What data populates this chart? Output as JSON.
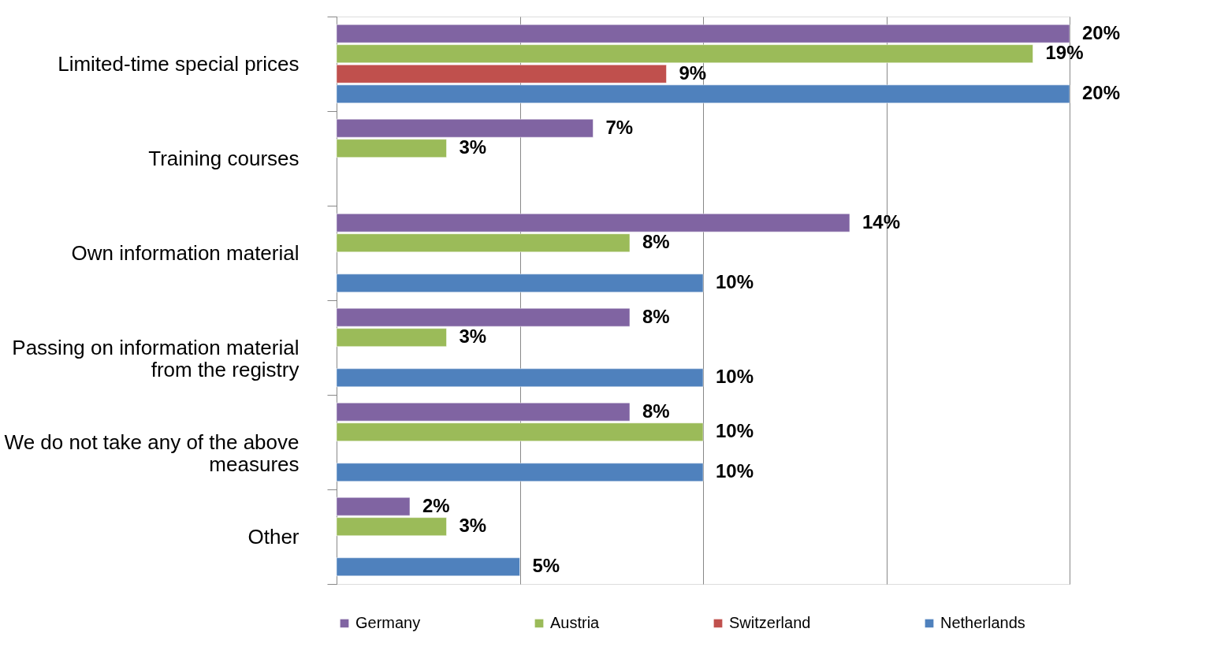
{
  "chart_data": {
    "type": "bar",
    "orientation": "horizontal",
    "categories": [
      "Limited-time special prices",
      "Training courses",
      "Own information material",
      "Passing on information material from the registry",
      "We do not take any of the above measures",
      "Other"
    ],
    "series": [
      {
        "name": "Germany",
        "color": "#8064a2",
        "values": [
          20,
          7,
          14,
          8,
          8,
          2
        ],
        "value_labels": [
          "20%",
          "7%",
          "14%",
          "8%",
          "8%",
          "2%"
        ]
      },
      {
        "name": "Austria",
        "color": "#9bbb59",
        "values": [
          19,
          3,
          8,
          3,
          10,
          3
        ],
        "value_labels": [
          "19%",
          "3%",
          "8%",
          "3%",
          "10%",
          "3%"
        ]
      },
      {
        "name": "Switzerland",
        "color": "#c0504d",
        "values": [
          9,
          null,
          null,
          null,
          null,
          null
        ],
        "value_labels": [
          "9%",
          null,
          null,
          null,
          null,
          null
        ]
      },
      {
        "name": "Netherlands",
        "color": "#4f81bd",
        "values": [
          20,
          null,
          10,
          10,
          10,
          5
        ],
        "value_labels": [
          "20%",
          null,
          "10%",
          "10%",
          "10%",
          "5%"
        ]
      }
    ],
    "xlim": [
      0,
      20
    ],
    "xticks": [
      {
        "value": 0,
        "label": null
      },
      {
        "value": 5,
        "label": null
      },
      {
        "value": 10,
        "label": null
      },
      {
        "value": 15,
        "label": null
      },
      {
        "value": 20,
        "label": null
      }
    ],
    "tick_labels": false,
    "grid": "x",
    "legend": "bottom"
  }
}
